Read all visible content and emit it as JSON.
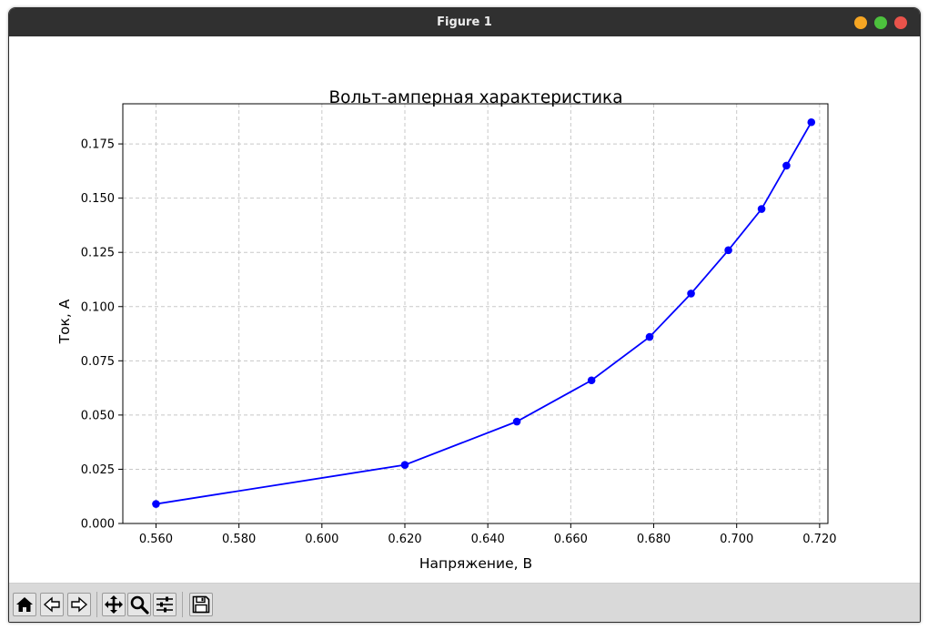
{
  "window": {
    "title": "Figure 1"
  },
  "toolbar": {
    "buttons": [
      {
        "name": "home-button",
        "icon": "home-icon"
      },
      {
        "name": "back-button",
        "icon": "arrow-left-icon"
      },
      {
        "name": "forward-button",
        "icon": "arrow-right-icon"
      },
      {
        "name": "pan-button",
        "icon": "move-icon"
      },
      {
        "name": "zoom-button",
        "icon": "magnifier-icon"
      },
      {
        "name": "configure-subplots-button",
        "icon": "sliders-icon"
      },
      {
        "name": "save-button",
        "icon": "floppy-disk-icon"
      }
    ]
  },
  "chart_data": {
    "type": "line",
    "title": "Вольт-амперная характеристика",
    "xlabel": "Напряжение, В",
    "ylabel": "Ток, А",
    "grid": true,
    "xlim": [
      0.552,
      0.722
    ],
    "ylim": [
      0.0,
      0.1935
    ],
    "xticks": [
      0.56,
      0.58,
      0.6,
      0.62,
      0.64,
      0.66,
      0.68,
      0.7,
      0.72
    ],
    "xtick_labels": [
      "0.560",
      "0.580",
      "0.600",
      "0.620",
      "0.640",
      "0.660",
      "0.680",
      "0.700",
      "0.720"
    ],
    "yticks": [
      0.0,
      0.025,
      0.05,
      0.075,
      0.1,
      0.125,
      0.15,
      0.175
    ],
    "ytick_labels": [
      "0.000",
      "0.025",
      "0.050",
      "0.075",
      "0.100",
      "0.125",
      "0.150",
      "0.175"
    ],
    "series": [
      {
        "color": "#0000ff",
        "marker": "circle",
        "x": [
          0.56,
          0.62,
          0.647,
          0.665,
          0.679,
          0.689,
          0.698,
          0.706,
          0.712,
          0.718
        ],
        "y": [
          0.009,
          0.027,
          0.047,
          0.066,
          0.086,
          0.106,
          0.126,
          0.145,
          0.165,
          0.185
        ]
      }
    ]
  }
}
